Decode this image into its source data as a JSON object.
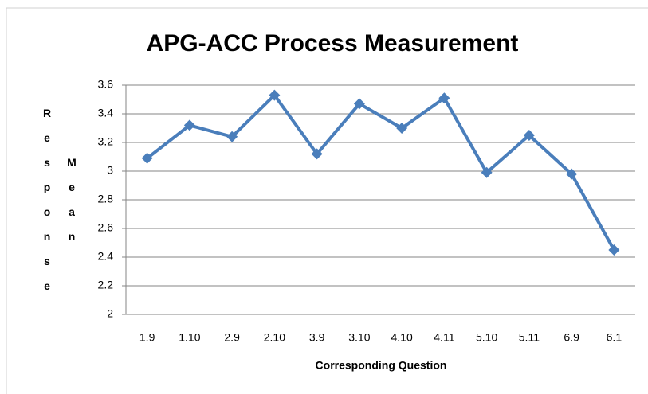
{
  "chart_data": {
    "type": "line",
    "title": "APG-ACC Process Measurement",
    "xlabel": "Corresponding Question",
    "ylabel": [
      "Response",
      "Mean"
    ],
    "categories": [
      "1.9",
      "1.10",
      "2.9",
      "2.10",
      "3.9",
      "3.10",
      "4.10",
      "4.11",
      "5.10",
      "5.11",
      "6.9",
      "6.1"
    ],
    "series": [
      {
        "color": "#4a7ebb",
        "values": [
          3.09,
          3.32,
          3.24,
          3.53,
          3.12,
          3.47,
          3.3,
          3.51,
          2.99,
          3.25,
          2.98,
          2.45
        ]
      }
    ],
    "ylim": [
      2,
      3.6
    ],
    "yticks": [
      2,
      2.2,
      2.4,
      2.6,
      2.8,
      3,
      3.2,
      3.4,
      3.6
    ],
    "grid": true
  }
}
